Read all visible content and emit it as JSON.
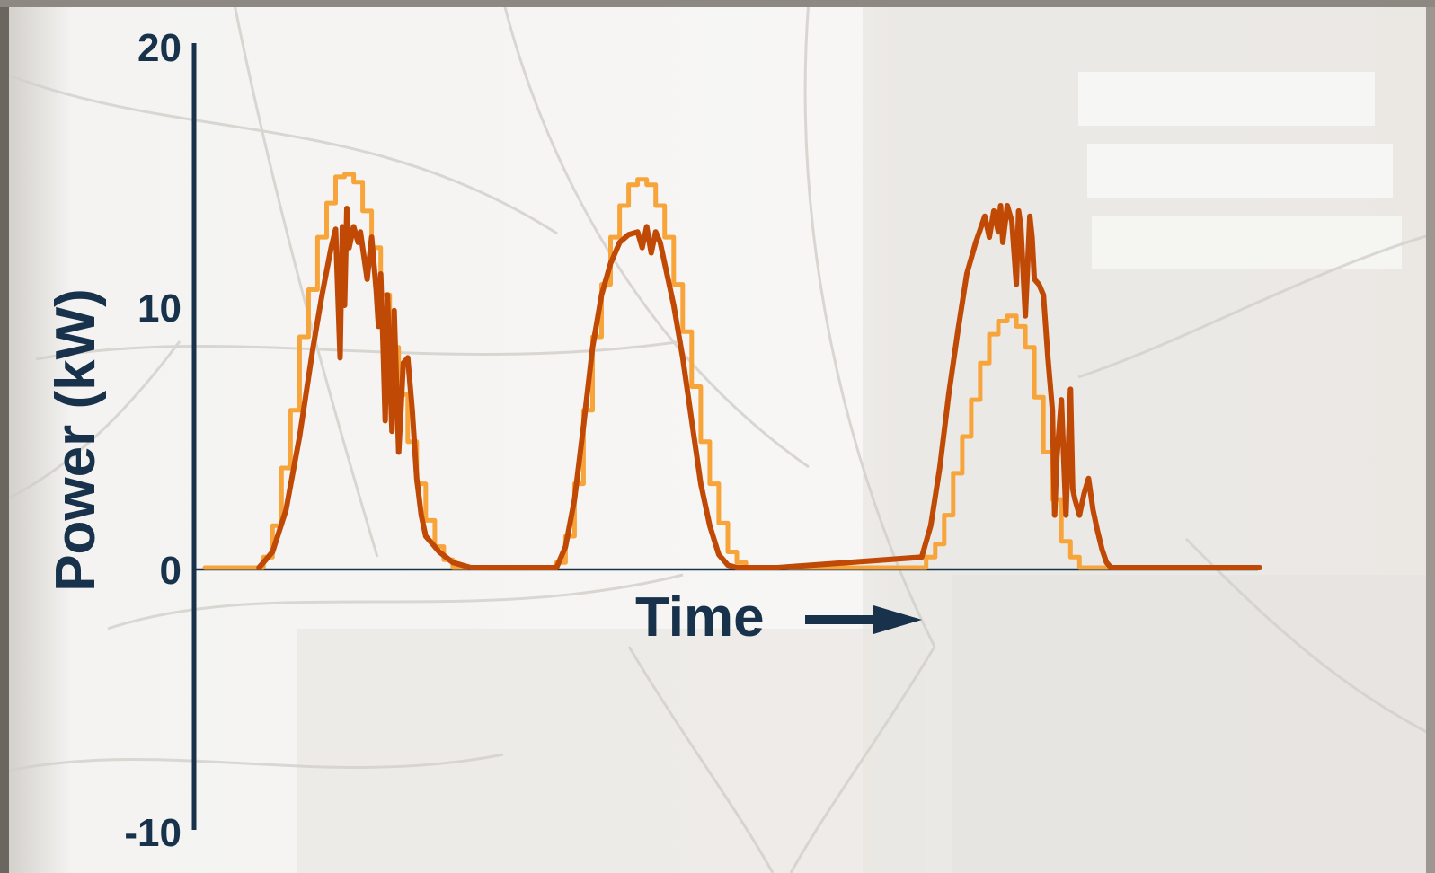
{
  "chart_data": {
    "type": "line",
    "title": "",
    "xlabel": "Time",
    "ylabel": "Power (kW)",
    "ylim": [
      -10,
      20
    ],
    "yticks": [
      20,
      10,
      0,
      -10
    ],
    "legend": "none",
    "grid": false,
    "colors": {
      "axis": "#17324a",
      "series_light": "#f7a43b",
      "series_dark": "#c04a05",
      "background_photo": "#c9c6c1"
    },
    "series": [
      {
        "style": "stepped",
        "x": [
          0,
          1.3,
          1.5,
          1.7,
          1.9,
          2.1,
          2.3,
          2.5,
          2.7,
          2.9,
          3.1,
          3.3,
          3.5,
          3.7,
          3.9,
          4.1,
          4.3,
          4.5,
          4.7,
          4.9,
          5.1,
          5.3,
          5.5,
          5.7,
          5.9,
          6.1,
          6.3,
          7.8,
          8.0,
          8.2,
          8.4,
          8.6,
          8.8,
          9.0,
          9.2,
          9.4,
          9.6,
          9.8,
          10.0,
          10.2,
          10.4,
          10.6,
          10.8,
          11.0,
          11.2,
          11.4,
          11.6,
          11.8,
          12.0,
          12.2,
          12.4,
          12.6,
          12.8,
          13.0,
          15.8,
          16.0,
          16.2,
          16.4,
          16.6,
          16.8,
          17.0,
          17.2,
          17.4,
          17.6,
          17.8,
          18.0,
          18.2,
          18.4,
          18.6,
          18.8,
          19.0,
          19.2,
          19.4,
          19.6,
          19.8,
          20.0,
          20.2,
          20.4,
          20.6,
          20.8,
          21.0,
          21.2,
          21.4,
          21.6,
          21.8,
          22.0,
          23.4
        ],
        "y": [
          0,
          0.4,
          1.6,
          3.8,
          6.0,
          8.8,
          10.6,
          12.6,
          13.9,
          14.9,
          15.0,
          14.7,
          13.6,
          12.2,
          10.4,
          8.4,
          6.6,
          4.8,
          3.2,
          1.8,
          0.8,
          0.3,
          0,
          0,
          0,
          0,
          0,
          0.2,
          1.2,
          3.2,
          6.0,
          8.8,
          10.8,
          12.6,
          13.8,
          14.6,
          14.8,
          14.6,
          13.8,
          12.6,
          10.8,
          9.0,
          6.9,
          4.8,
          3.2,
          1.7,
          0.6,
          0.2,
          0,
          0,
          0,
          0,
          0,
          0,
          0,
          0.4,
          0.9,
          2.0,
          3.6,
          5.0,
          6.4,
          7.8,
          8.9,
          9.4,
          9.6,
          9.2,
          8.4,
          6.5,
          4.4,
          2.6,
          1.0,
          0.4,
          0,
          0,
          0,
          0,
          0,
          0,
          0,
          0,
          0,
          0,
          0,
          0,
          0,
          0,
          0
        ]
      },
      {
        "style": "noisy",
        "x": [
          1.2,
          1.5,
          1.8,
          2.1,
          2.4,
          2.6,
          2.8,
          2.9,
          3.0,
          3.05,
          3.1,
          3.15,
          3.2,
          3.3,
          3.4,
          3.45,
          3.5,
          3.6,
          3.7,
          3.8,
          3.85,
          3.9,
          3.95,
          4.0,
          4.05,
          4.1,
          4.15,
          4.2,
          4.3,
          4.35,
          4.4,
          4.5,
          4.6,
          4.7,
          4.8,
          4.9,
          5.0,
          5.2,
          5.5,
          5.9,
          6.4,
          7.8,
          8.0,
          8.2,
          8.4,
          8.6,
          8.8,
          9.0,
          9.2,
          9.4,
          9.6,
          9.7,
          9.8,
          9.9,
          10.0,
          10.1,
          10.2,
          10.4,
          10.6,
          10.8,
          11.0,
          11.2,
          11.4,
          11.6,
          11.8,
          12.0,
          12.3,
          12.7,
          15.9,
          16.1,
          16.3,
          16.5,
          16.7,
          16.9,
          17.1,
          17.3,
          17.4,
          17.5,
          17.6,
          17.65,
          17.7,
          17.8,
          17.9,
          18.0,
          18.05,
          18.1,
          18.2,
          18.3,
          18.35,
          18.4,
          18.5,
          18.6,
          18.7,
          18.8,
          18.85,
          18.9,
          19.0,
          19.1,
          19.2,
          19.25,
          19.3,
          19.4,
          19.5,
          19.6,
          19.7,
          19.8,
          19.9,
          20.0,
          20.1,
          20.2,
          20.3,
          20.4,
          20.5,
          20.6,
          20.8,
          21.2,
          23.4
        ],
        "y": [
          0,
          0.6,
          2.2,
          5.0,
          8.4,
          10.4,
          12.2,
          12.9,
          8.0,
          13.0,
          10.0,
          13.7,
          12.2,
          13.0,
          12.4,
          12.8,
          12.2,
          11.0,
          12.6,
          10.6,
          9.2,
          11.2,
          8.6,
          5.6,
          10.4,
          7.6,
          5.2,
          9.8,
          4.4,
          6.0,
          7.8,
          8.0,
          6.0,
          3.4,
          2.0,
          1.2,
          1.0,
          0.6,
          0.2,
          0,
          0,
          0,
          0.8,
          2.6,
          5.4,
          8.4,
          10.4,
          11.6,
          12.4,
          12.7,
          12.8,
          12.2,
          13.0,
          12.0,
          12.8,
          12.4,
          11.6,
          10.0,
          8.0,
          5.6,
          3.2,
          1.6,
          0.5,
          0.1,
          0,
          0,
          0,
          0,
          0.4,
          1.6,
          3.8,
          6.6,
          9.0,
          11.2,
          12.4,
          13.4,
          12.6,
          13.6,
          12.8,
          13.8,
          12.4,
          13.8,
          13.2,
          10.8,
          13.6,
          13.0,
          9.6,
          13.4,
          12.6,
          11.0,
          10.8,
          10.4,
          8.0,
          6.0,
          2.0,
          4.2,
          6.4,
          2.0,
          6.8,
          3.0,
          2.6,
          2.0,
          2.8,
          3.4,
          2.2,
          1.4,
          0.7,
          0.2,
          0,
          0,
          0,
          0,
          0,
          0,
          0,
          0,
          0
        ]
      }
    ]
  }
}
